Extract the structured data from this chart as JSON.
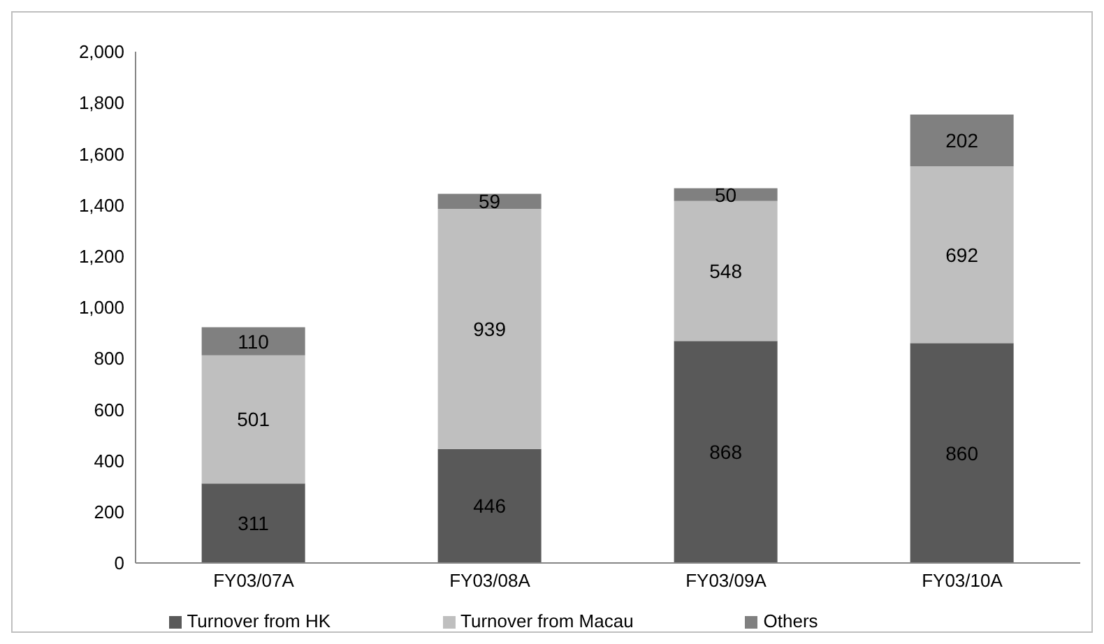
{
  "chart_data": {
    "type": "bar",
    "stacked": true,
    "categories": [
      "FY03/07A",
      "FY03/08A",
      "FY03/09A",
      "FY03/10A"
    ],
    "series": [
      {
        "name": "Turnover from HK",
        "color": "#595959",
        "values": [
          311,
          446,
          868,
          860
        ]
      },
      {
        "name": "Turnover from Macau",
        "color": "#bfbfbf",
        "values": [
          501,
          939,
          548,
          692
        ]
      },
      {
        "name": "Others",
        "color": "#808080",
        "values": [
          110,
          59,
          50,
          202
        ]
      }
    ],
    "ylim": [
      0,
      2000
    ],
    "yticks": [
      0,
      200,
      400,
      600,
      800,
      {
        "value": 1000,
        "label": "1,000"
      },
      {
        "value": 1200,
        "label": "1,200"
      },
      {
        "value": 1400,
        "label": "1,400"
      },
      {
        "value": 1600,
        "label": "1,600"
      },
      {
        "value": 1800,
        "label": "1,800"
      },
      {
        "value": 2000,
        "label": "2,000"
      }
    ],
    "data_labels": true,
    "grid": false,
    "legend": "bottom"
  }
}
